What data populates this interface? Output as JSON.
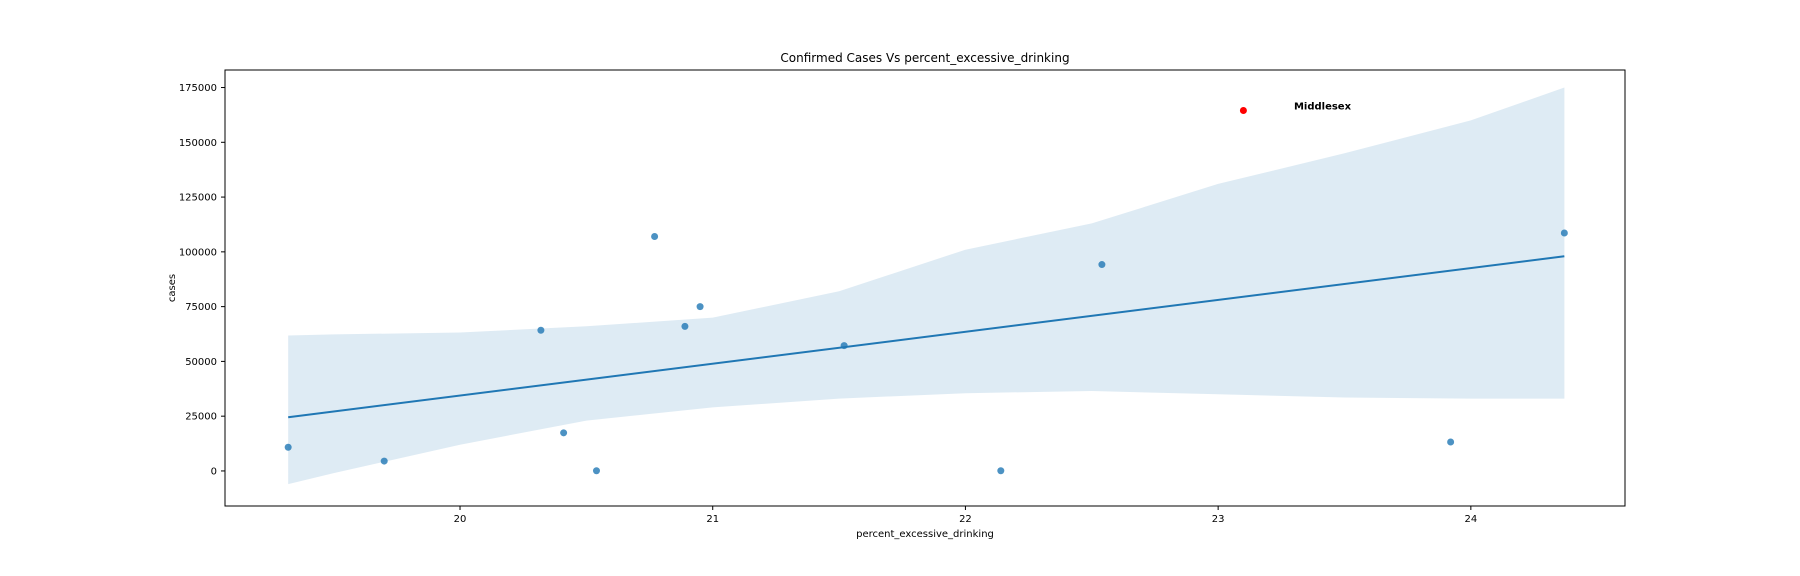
{
  "chart_data": {
    "type": "scatter",
    "title": "Confirmed Cases Vs percent_excessive_drinking",
    "xlabel": "percent_excessive_drinking",
    "ylabel": "cases",
    "xlim": [
      19.07,
      24.61
    ],
    "ylim": [
      -16000,
      183000
    ],
    "xticks": [
      20,
      21,
      22,
      23,
      24
    ],
    "yticks": [
      0,
      25000,
      50000,
      75000,
      100000,
      125000,
      150000,
      175000
    ],
    "grid": false,
    "series": [
      {
        "color": "#1f77b4",
        "points": [
          {
            "x": 19.32,
            "y": 10800
          },
          {
            "x": 19.7,
            "y": 4500
          },
          {
            "x": 20.32,
            "y": 64200
          },
          {
            "x": 20.41,
            "y": 17400
          },
          {
            "x": 20.54,
            "y": 100
          },
          {
            "x": 20.77,
            "y": 107000
          },
          {
            "x": 20.89,
            "y": 66000
          },
          {
            "x": 20.95,
            "y": 75000
          },
          {
            "x": 21.52,
            "y": 57200
          },
          {
            "x": 22.14,
            "y": 100
          },
          {
            "x": 22.54,
            "y": 94200
          },
          {
            "x": 23.92,
            "y": 13200
          },
          {
            "x": 24.37,
            "y": 108600
          }
        ]
      },
      {
        "color": "#ff0000",
        "points": [
          {
            "x": 23.1,
            "y": 164500
          }
        ]
      }
    ],
    "regression": {
      "color": "#1f77b4",
      "x0": 19.32,
      "y0": 24500,
      "x1": 24.37,
      "y1": 98000
    },
    "confidence_band": {
      "color": "#1f77b4",
      "x": [
        19.32,
        19.5,
        20.0,
        20.5,
        21.0,
        21.5,
        22.0,
        22.5,
        23.0,
        23.5,
        24.0,
        24.37
      ],
      "upper": [
        61800,
        62300,
        63200,
        66000,
        70000,
        82000,
        101000,
        113000,
        131000,
        145000,
        160000,
        175000
      ],
      "lower": [
        -6000,
        -1000,
        12000,
        23000,
        29000,
        33000,
        35500,
        36500,
        35000,
        33500,
        33000,
        33000
      ]
    },
    "annotations": [
      {
        "text": "Middlesex",
        "x": 23.3,
        "y": 166500
      }
    ]
  }
}
